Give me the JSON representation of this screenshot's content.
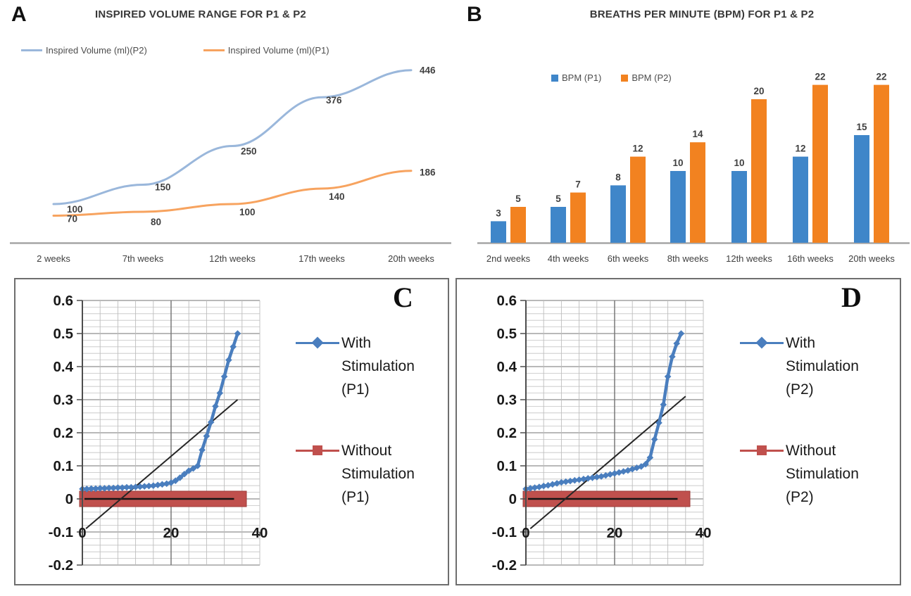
{
  "chart_data": [
    {
      "panel": "A",
      "type": "line",
      "title": "INSPIRED VOLUME RANGE FOR P1 & P2",
      "categories": [
        "2 weeks",
        "7th weeks",
        "12th weeks",
        "17th weeks",
        "20th weeks"
      ],
      "series": [
        {
          "name": "Inspired Volume (ml)(P2)",
          "color": "#9AB7DB",
          "values": [
            100,
            150,
            250,
            376,
            446
          ]
        },
        {
          "name": "Inspired Volume (ml)(P1)",
          "color": "#F7A35F",
          "values": [
            70,
            80,
            100,
            140,
            186
          ]
        }
      ],
      "ylim": [
        0,
        460
      ],
      "axis_color": "#A6A6A6",
      "label_color": "#404040",
      "legend_position": "top",
      "grid": false
    },
    {
      "panel": "B",
      "type": "bar",
      "title": "BREATHS PER MINUTE (BPM) FOR P1 & P2",
      "categories": [
        "2nd weeks",
        "4th weeks",
        "6th weeks",
        "8th weeks",
        "12th weeks",
        "16th weeks",
        "20th weeks"
      ],
      "series": [
        {
          "name": "BPM (P1)",
          "color": "#3F86C9",
          "values": [
            3,
            5,
            8,
            10,
            10,
            12,
            15
          ]
        },
        {
          "name": "BPM (P2)",
          "color": "#F28220",
          "values": [
            5,
            7,
            12,
            14,
            20,
            22,
            22
          ]
        }
      ],
      "ylim": [
        0,
        24
      ],
      "axis_color": "#A6A6A6",
      "label_color": "#404040",
      "legend_position": "top",
      "grid": false
    },
    {
      "panel": "C",
      "type": "scatter-line",
      "xlim": [
        0,
        40
      ],
      "ylim": [
        -0.2,
        0.6
      ],
      "xticks": [
        "0",
        "20",
        "40"
      ],
      "yticks": [
        "0.6",
        "0.5",
        "0.4",
        "0.3",
        "0.2",
        "0.1",
        "0",
        "-0.1",
        "-0.2"
      ],
      "minor_x": 4,
      "minor_y": 0.02,
      "grid": true,
      "legend_position": "right",
      "series": [
        {
          "name": "With Stimulation (P1)",
          "legend_lines": [
            "With",
            "Stimulation",
            "(P1)"
          ],
          "marker": "diamond",
          "color": "#4A7EBE",
          "x": [
            0,
            1,
            2,
            3,
            4,
            5,
            6,
            7,
            8,
            9,
            10,
            11,
            12,
            13,
            14,
            15,
            16,
            17,
            18,
            19,
            20,
            21,
            22,
            23,
            24,
            25,
            26,
            27,
            28,
            29,
            30,
            31,
            32,
            33,
            34,
            35
          ],
          "y": [
            0.03,
            0.03,
            0.031,
            0.031,
            0.032,
            0.032,
            0.033,
            0.033,
            0.034,
            0.034,
            0.035,
            0.035,
            0.036,
            0.037,
            0.038,
            0.039,
            0.04,
            0.042,
            0.044,
            0.046,
            0.049,
            0.055,
            0.064,
            0.075,
            0.085,
            0.092,
            0.1,
            0.148,
            0.19,
            0.232,
            0.28,
            0.32,
            0.37,
            0.42,
            0.46,
            0.5
          ]
        },
        {
          "name": "Without Stimulation (P1)",
          "legend_lines": [
            "Without",
            "Stimulation",
            "(P1)"
          ],
          "marker": "square",
          "color": "#C0504D",
          "x": [
            0,
            35
          ],
          "y": [
            0,
            0
          ]
        },
        {
          "name": "linear trend line",
          "color": "#262626",
          "x": [
            0.8,
            35
          ],
          "y": [
            -0.09,
            0.3
          ]
        }
      ]
    },
    {
      "panel": "D",
      "type": "scatter-line",
      "xlim": [
        0,
        40
      ],
      "ylim": [
        -0.2,
        0.6
      ],
      "xticks": [
        "0",
        "20",
        "40"
      ],
      "yticks": [
        "0.6",
        "0.5",
        "0.4",
        "0.3",
        "0.2",
        "0.1",
        "0",
        "-0.1",
        "-0.2"
      ],
      "minor_x": 4,
      "minor_y": 0.02,
      "grid": true,
      "legend_position": "right",
      "series": [
        {
          "name": "With Stimulation (P2)",
          "legend_lines": [
            "With",
            "Stimulation",
            "(P2)"
          ],
          "marker": "diamond",
          "color": "#4A7EBE",
          "x": [
            0,
            1,
            2,
            3,
            4,
            5,
            6,
            7,
            8,
            9,
            10,
            11,
            12,
            13,
            14,
            15,
            16,
            17,
            18,
            19,
            20,
            21,
            22,
            23,
            24,
            25,
            26,
            27,
            28,
            29,
            30,
            31,
            32,
            33,
            34,
            35
          ],
          "y": [
            0.03,
            0.032,
            0.034,
            0.036,
            0.039,
            0.041,
            0.044,
            0.047,
            0.05,
            0.052,
            0.054,
            0.056,
            0.058,
            0.06,
            0.062,
            0.064,
            0.066,
            0.068,
            0.071,
            0.074,
            0.077,
            0.08,
            0.083,
            0.086,
            0.09,
            0.094,
            0.098,
            0.105,
            0.125,
            0.18,
            0.23,
            0.285,
            0.37,
            0.43,
            0.47,
            0.5
          ]
        },
        {
          "name": "Without Stimulation (P2)",
          "legend_lines": [
            "Without",
            "Stimulation",
            "(P2)"
          ],
          "marker": "square",
          "color": "#C0504D",
          "x": [
            0,
            35
          ],
          "y": [
            0,
            0
          ]
        },
        {
          "name": "linear trend line",
          "color": "#262626",
          "x": [
            1,
            36
          ],
          "y": [
            -0.09,
            0.31
          ]
        }
      ]
    }
  ]
}
